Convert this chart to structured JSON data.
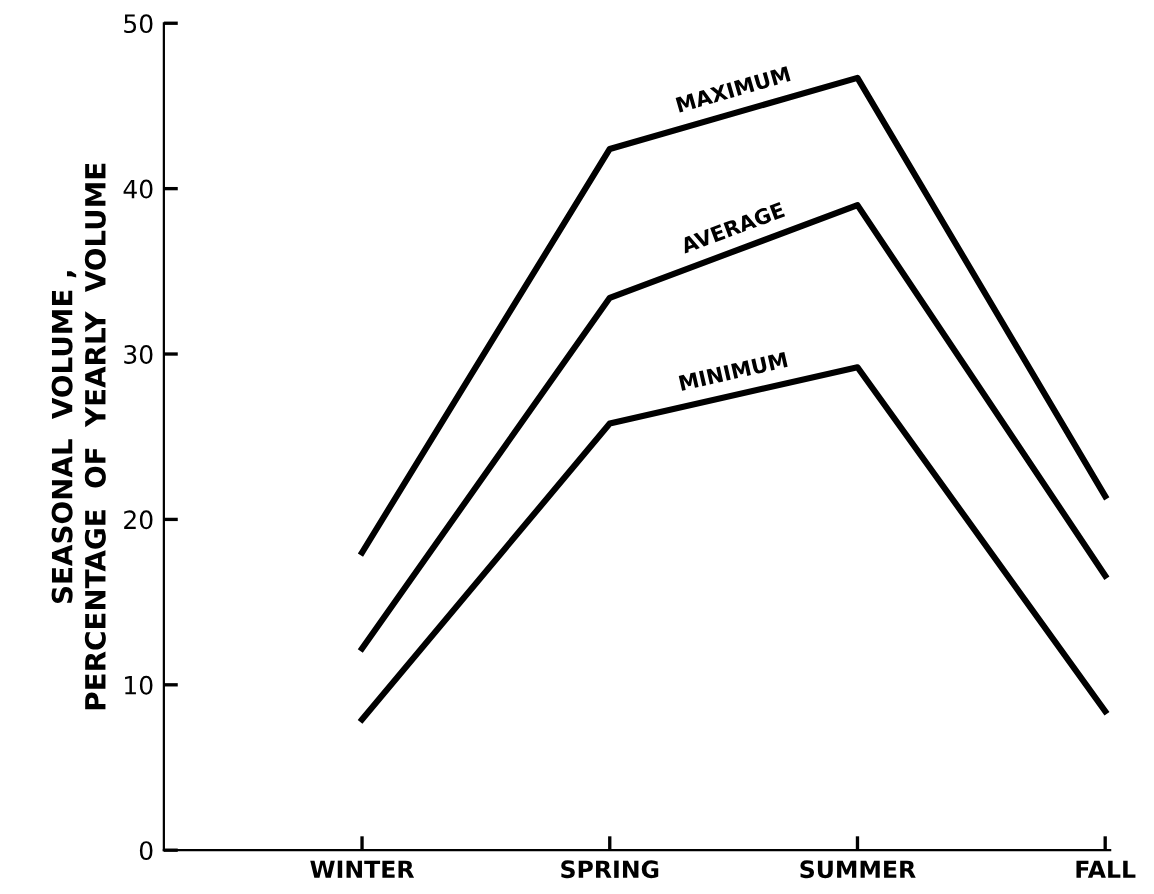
{
  "chart_data": {
    "type": "line",
    "ylabel": "SEASONAL  VOLUME ,\nPERCENTAGE  OF  YEARLY  VOLUME",
    "categories": [
      "WINTER",
      "SPRING",
      "SUMMER",
      "FALL"
    ],
    "series": [
      {
        "name": "MAXIMUM",
        "color": "#000000",
        "values": [
          18,
          42.4,
          46.7,
          21.4
        ]
      },
      {
        "name": "AVERAGE",
        "color": "#000000",
        "values": [
          12.2,
          33.4,
          39.0,
          16.6
        ]
      },
      {
        "name": "MINIMUM",
        "color": "#000000",
        "values": [
          7.9,
          25.8,
          29.2,
          8.4
        ]
      }
    ],
    "ylim": [
      0,
      50
    ],
    "yticks": [
      0,
      10,
      20,
      30,
      40,
      50
    ],
    "grid": false,
    "legend": false,
    "marker": "none",
    "line_style": "solid"
  }
}
